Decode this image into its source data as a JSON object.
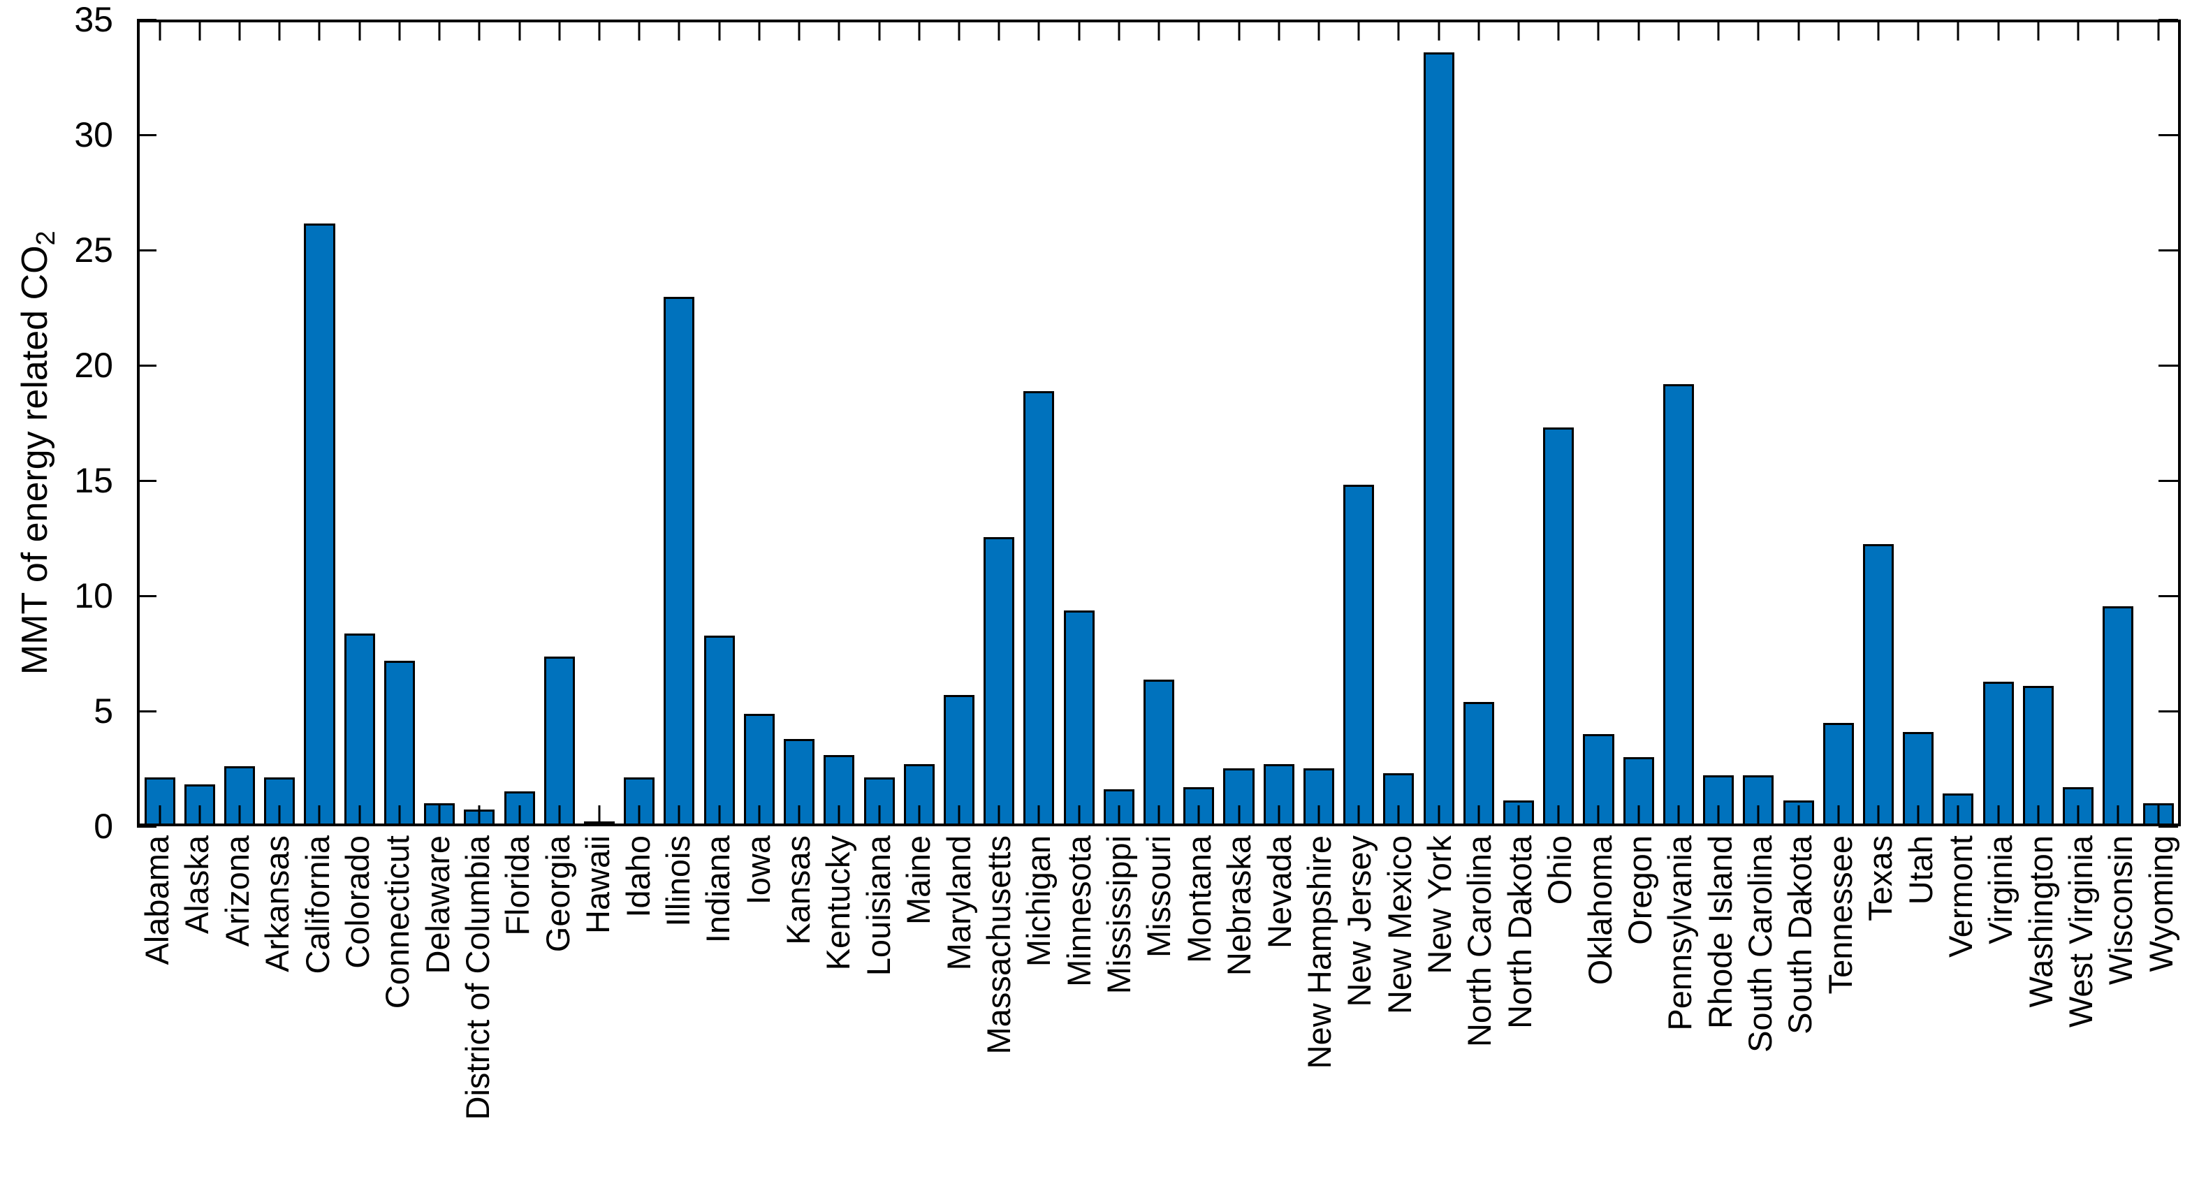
{
  "chart_data": {
    "type": "bar",
    "title": "",
    "xlabel": "",
    "ylabel": "MMT of energy related CO2",
    "ylabel_main": "MMT of energy related CO",
    "ylabel_sub": "2",
    "ylim": [
      0,
      35
    ],
    "yticks": [
      0,
      5,
      10,
      15,
      20,
      25,
      30,
      35
    ],
    "grid": false,
    "legend": "none",
    "bar_color": "#0072BD",
    "bar_edge_color": "#000000",
    "axis_color": "#000000",
    "categories": [
      "Alabama",
      "Alaska",
      "Arizona",
      "Arkansas",
      "California",
      "Colorado",
      "Connecticut",
      "Delaware",
      "District of Columbia",
      "Florida",
      "Georgia",
      "Hawaii",
      "Idaho",
      "Illinois",
      "Indiana",
      "Iowa",
      "Kansas",
      "Kentucky",
      "Louisiana",
      "Maine",
      "Maryland",
      "Massachusetts",
      "Michigan",
      "Minnesota",
      "Mississippi",
      "Missouri",
      "Montana",
      "Nebraska",
      "Nevada",
      "New Hampshire",
      "New Jersey",
      "New Mexico",
      "New York",
      "North Carolina",
      "North Dakota",
      "Ohio",
      "Oklahoma",
      "Oregon",
      "Pennsylvania",
      "Rhode Island",
      "South Carolina",
      "South Dakota",
      "Tennessee",
      "Texas",
      "Utah",
      "Vermont",
      "Virginia",
      "Washington",
      "West Virginia",
      "Wisconsin",
      "Wyoming"
    ],
    "values": [
      2.0,
      1.7,
      2.5,
      2.0,
      26.2,
      8.3,
      7.1,
      0.9,
      0.6,
      1.4,
      7.3,
      0.03,
      2.0,
      23.0,
      8.2,
      4.8,
      3.7,
      3.0,
      2.0,
      2.6,
      5.6,
      12.5,
      18.9,
      9.3,
      1.5,
      6.3,
      1.6,
      2.4,
      2.6,
      2.4,
      14.8,
      2.2,
      33.7,
      5.3,
      1.0,
      17.3,
      3.9,
      2.9,
      19.2,
      2.1,
      2.1,
      1.0,
      4.4,
      12.2,
      4.0,
      1.3,
      6.2,
      6.0,
      1.6,
      9.5,
      0.9
    ]
  }
}
